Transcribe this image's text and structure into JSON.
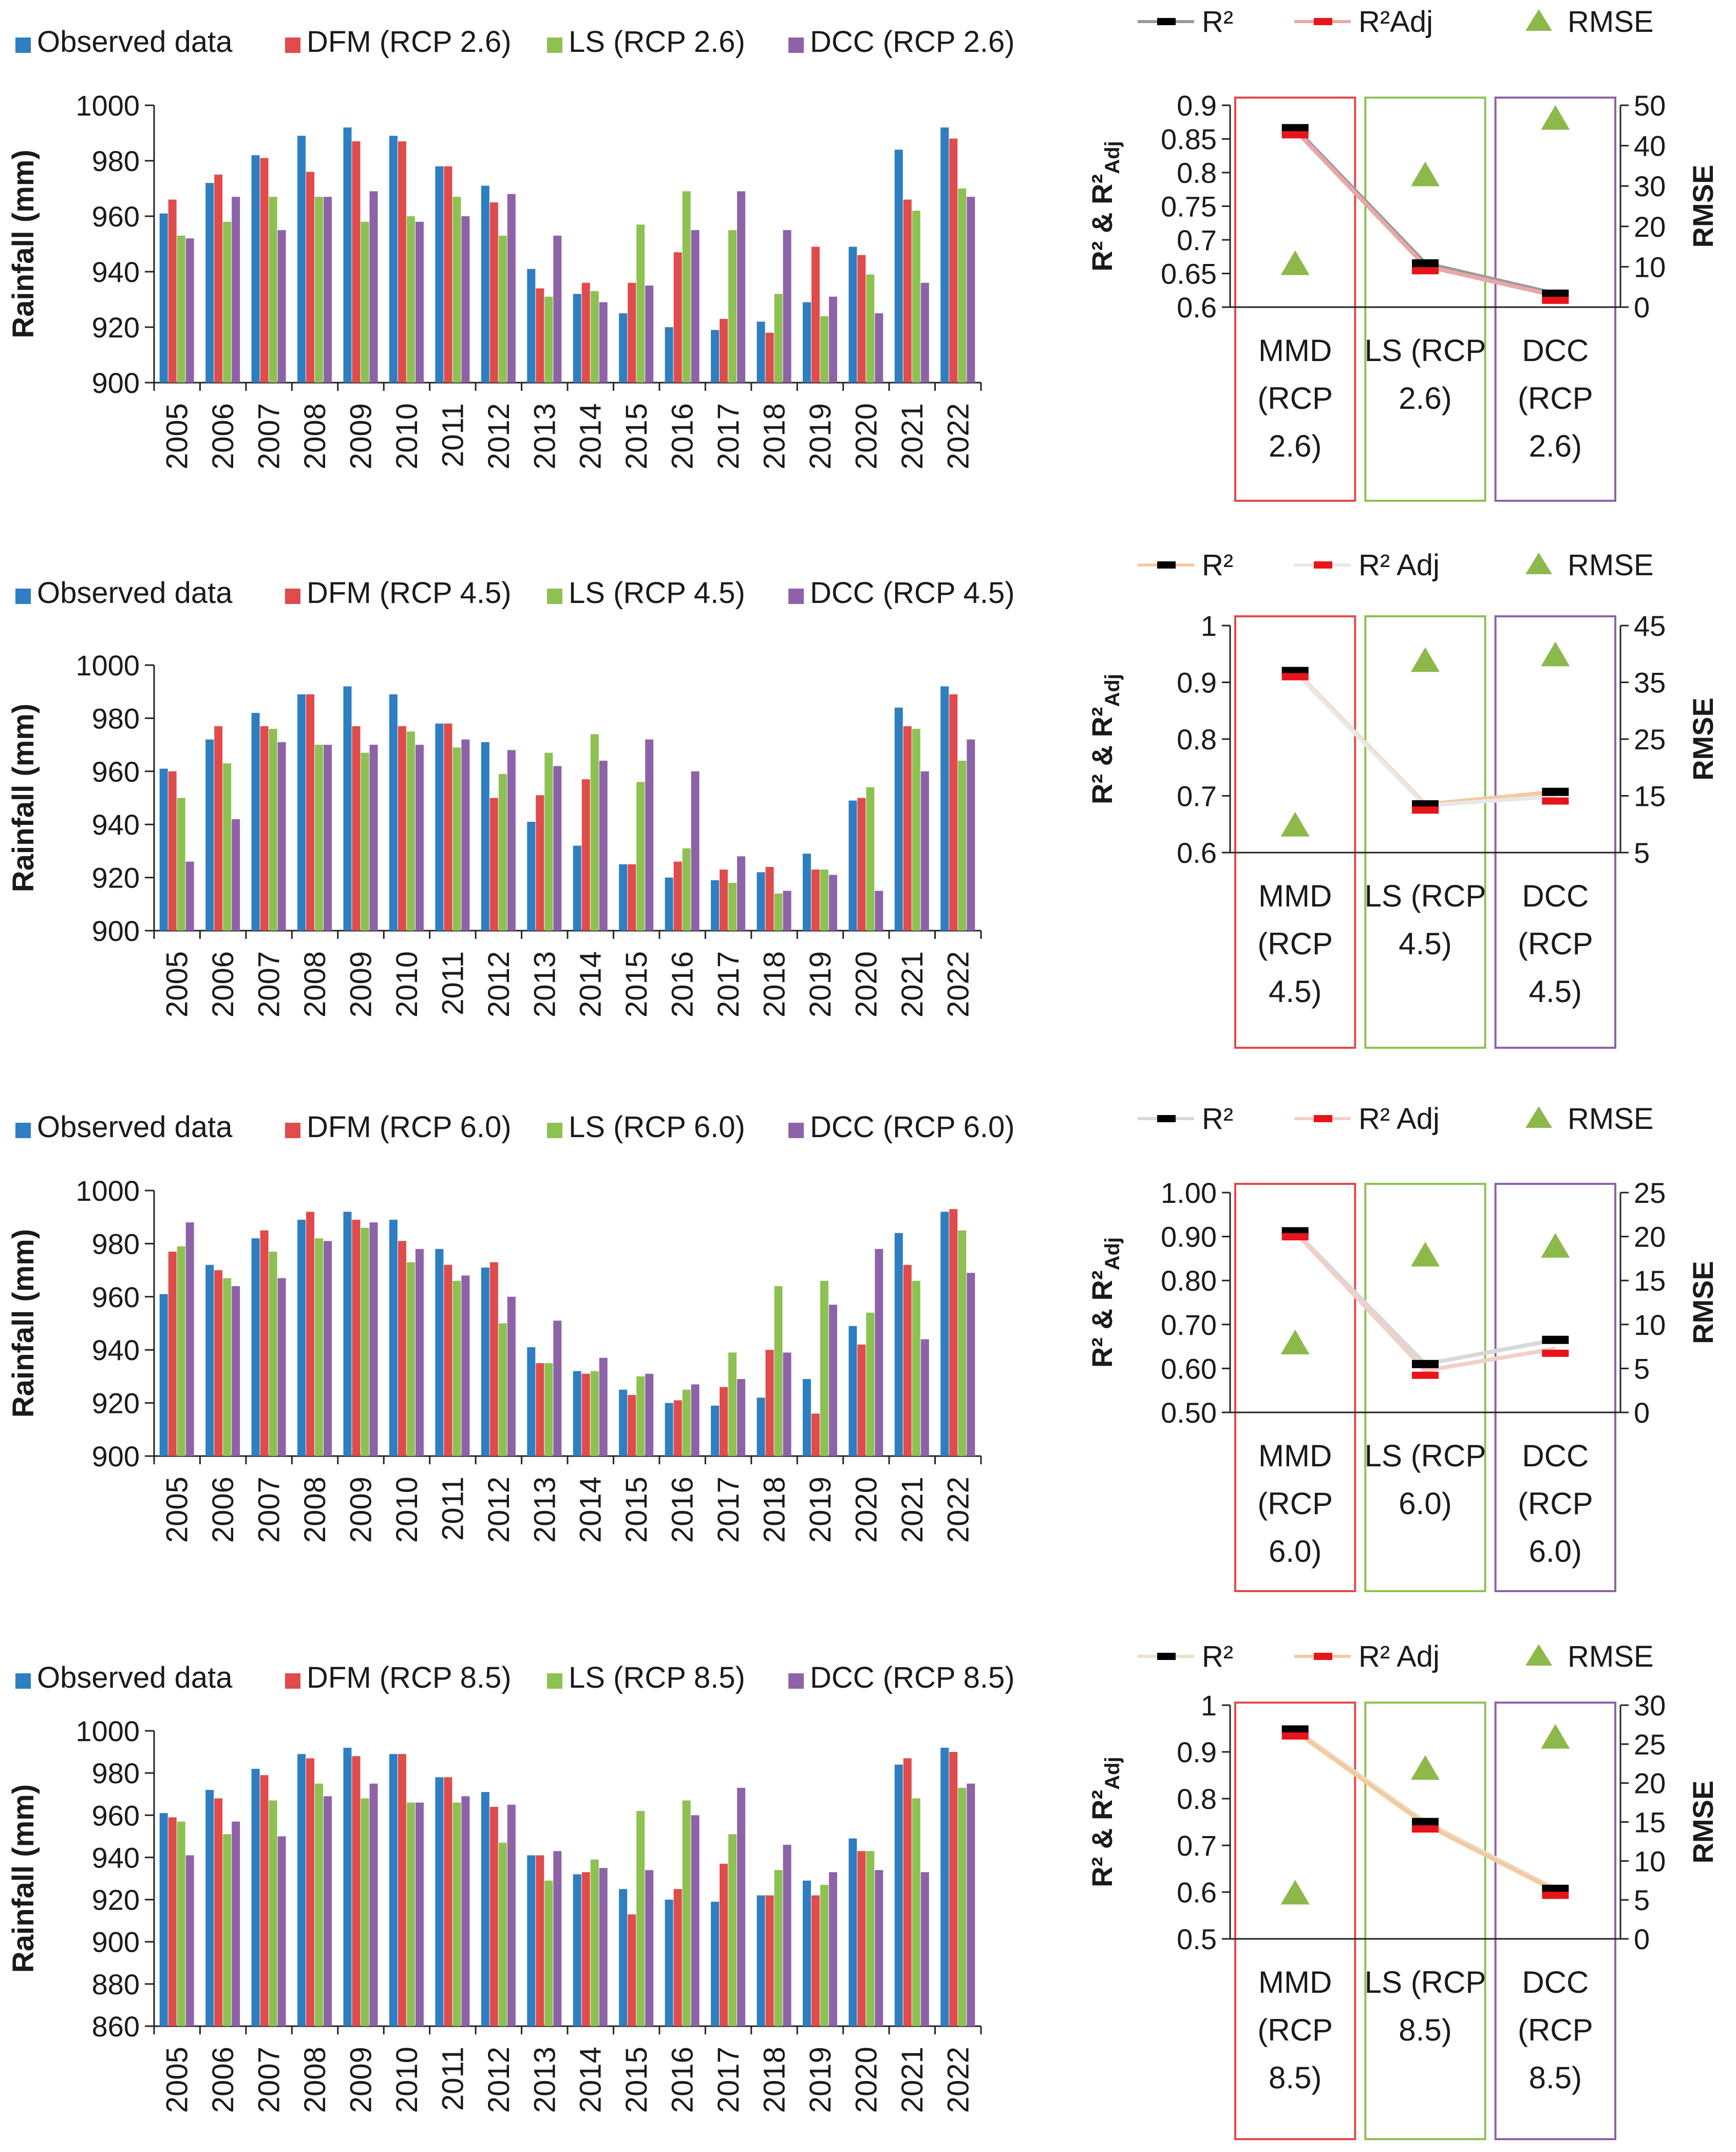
{
  "chart_data": [
    {
      "type": "bar",
      "panel": "RCP 2.6 rainfall",
      "categories": [
        "2005",
        "2006",
        "2007",
        "2008",
        "2009",
        "2010",
        "2011",
        "2012",
        "2013",
        "2014",
        "2015",
        "2016",
        "2017",
        "2018",
        "2019",
        "2020",
        "2021",
        "2022"
      ],
      "ylabel": "Rainfall (mm)",
      "ylim": [
        900,
        1000
      ],
      "yticks": [
        900,
        920,
        940,
        960,
        980,
        1000
      ],
      "legend_position": "top",
      "series": [
        {
          "name": "Observed data",
          "color": "#2E7EC2",
          "values": [
            961,
            972,
            982,
            989,
            992,
            989,
            978,
            971,
            941,
            932,
            925,
            920,
            919,
            922,
            929,
            949,
            984,
            992
          ]
        },
        {
          "name": "DFM (RCP 2.6)",
          "color": "#E04B4B",
          "values": [
            966,
            975,
            981,
            976,
            987,
            987,
            978,
            965,
            934,
            936,
            936,
            947,
            923,
            918,
            949,
            946,
            966,
            988
          ]
        },
        {
          "name": "LS (RCP 2.6)",
          "color": "#8DC152",
          "values": [
            953,
            958,
            967,
            967,
            958,
            960,
            967,
            953,
            931,
            933,
            957,
            969,
            955,
            932,
            924,
            939,
            962,
            970
          ]
        },
        {
          "name": "DCC (RCP 2.6)",
          "color": "#8E62A8",
          "values": [
            952,
            967,
            955,
            967,
            969,
            958,
            960,
            968,
            953,
            929,
            935,
            955,
            969,
            955,
            931,
            925,
            936,
            967
          ]
        }
      ]
    },
    {
      "type": "line",
      "panel": "RCP 2.6 fit statistics",
      "categories": [
        "MMD (RCP 2.6)",
        "LS (RCP 2.6)",
        "DCC (RCP 2.6)"
      ],
      "ylabel": "R² & R²Adj",
      "y2label": "RMSE",
      "ylim": [
        0.6,
        0.9
      ],
      "yticks": [
        "0.6",
        "0.65",
        "0.7",
        "0.75",
        "0.8",
        "0.85",
        "0.9"
      ],
      "y2lim": [
        0,
        50
      ],
      "y2ticks": [
        0,
        10,
        20,
        30,
        40,
        50
      ],
      "box_colors": [
        "#E04B4B",
        "#8DC152",
        "#8E62A8"
      ],
      "legend": [
        "R²",
        "R²Adj",
        "RMSE"
      ],
      "r2": [
        0.866,
        0.665,
        0.62
      ],
      "r2adj": [
        0.863,
        0.661,
        0.617
      ],
      "rmse": [
        11,
        33,
        47
      ],
      "line_color_r2": "#9a9a9a",
      "line_color_r2adj": "#E8A8A8",
      "rmse_color": "#8DB84A"
    },
    {
      "type": "bar",
      "panel": "RCP 4.5 rainfall",
      "categories": [
        "2005",
        "2006",
        "2007",
        "2008",
        "2009",
        "2010",
        "2011",
        "2012",
        "2013",
        "2014",
        "2015",
        "2016",
        "2017",
        "2018",
        "2019",
        "2020",
        "2021",
        "2022"
      ],
      "ylabel": "Rainfall (mm)",
      "ylim": [
        900,
        1000
      ],
      "yticks": [
        900,
        920,
        940,
        960,
        980,
        1000
      ],
      "legend_position": "top",
      "series": [
        {
          "name": "Observed data",
          "color": "#2E7EC2",
          "values": [
            961,
            972,
            982,
            989,
            992,
            989,
            978,
            971,
            941,
            932,
            925,
            920,
            919,
            922,
            929,
            949,
            984,
            992
          ]
        },
        {
          "name": "DFM (RCP 4.5)",
          "color": "#E04B4B",
          "values": [
            960,
            977,
            977,
            989,
            977,
            977,
            978,
            950,
            951,
            957,
            925,
            926,
            923,
            924,
            923,
            950,
            977,
            989
          ]
        },
        {
          "name": "LS (RCP 4.5)",
          "color": "#8DC152",
          "values": [
            950,
            963,
            976,
            970,
            967,
            975,
            969,
            959,
            967,
            974,
            956,
            931,
            918,
            914,
            923,
            954,
            976,
            964
          ]
        },
        {
          "name": "DCC (RCP 4.5)",
          "color": "#8E62A8",
          "values": [
            926,
            942,
            971,
            970,
            970,
            970,
            972,
            968,
            962,
            964,
            972,
            960,
            928,
            915,
            921,
            915,
            960,
            972
          ]
        }
      ]
    },
    {
      "type": "line",
      "panel": "RCP 4.5 fit statistics",
      "categories": [
        "MMD (RCP 4.5)",
        "LS (RCP 4.5)",
        "DCC (RCP 4.5)"
      ],
      "ylabel": "R² & R²Adj",
      "y2label": "RMSE",
      "ylim": [
        0.6,
        1.0
      ],
      "yticks": [
        "0.6",
        "0.7",
        "0.8",
        "0.9",
        "1"
      ],
      "y2lim": [
        5,
        45
      ],
      "y2ticks": [
        5,
        15,
        25,
        35,
        45
      ],
      "box_colors": [
        "#E04B4B",
        "#8DC152",
        "#8E62A8"
      ],
      "legend": [
        "R²",
        "R² Adj",
        "RMSE"
      ],
      "r2": [
        0.92,
        0.685,
        0.707
      ],
      "r2adj": [
        0.918,
        0.683,
        0.699
      ],
      "rmse": [
        10,
        39,
        40
      ],
      "line_color_r2": "#F5C9A0",
      "line_color_r2adj": "#E8E8E8",
      "rmse_color": "#8DB84A"
    },
    {
      "type": "bar",
      "panel": "RCP 6.0 rainfall",
      "categories": [
        "2005",
        "2006",
        "2007",
        "2008",
        "2009",
        "2010",
        "2011",
        "2012",
        "2013",
        "2014",
        "2015",
        "2016",
        "2017",
        "2018",
        "2019",
        "2020",
        "2021",
        "2022"
      ],
      "ylabel": "Rainfall (mm)",
      "ylim": [
        900,
        1000
      ],
      "yticks": [
        900,
        920,
        940,
        960,
        980,
        1000
      ],
      "legend_position": "top",
      "series": [
        {
          "name": "Observed data",
          "color": "#2E7EC2",
          "values": [
            961,
            972,
            982,
            989,
            992,
            989,
            978,
            971,
            941,
            932,
            925,
            920,
            919,
            922,
            929,
            949,
            984,
            992
          ]
        },
        {
          "name": "DFM (RCP 6.0)",
          "color": "#E04B4B",
          "values": [
            977,
            970,
            985,
            992,
            989,
            981,
            972,
            973,
            935,
            931,
            923,
            921,
            926,
            940,
            916,
            942,
            972,
            993
          ]
        },
        {
          "name": "LS (RCP 6.0)",
          "color": "#8DC152",
          "values": [
            979,
            967,
            977,
            982,
            986,
            973,
            966,
            950,
            935,
            932,
            930,
            925,
            939,
            964,
            966,
            954,
            966,
            985
          ]
        },
        {
          "name": "DCC (RCP 6.0)",
          "color": "#8E62A8",
          "values": [
            988,
            964,
            967,
            981,
            988,
            978,
            968,
            960,
            951,
            937,
            931,
            927,
            929,
            939,
            957,
            978,
            944,
            969
          ]
        }
      ]
    },
    {
      "type": "line",
      "panel": "RCP 6.0 fit statistics",
      "categories": [
        "MMD (RCP 6.0)",
        "LS (RCP 6.0)",
        "DCC (RCP 6.0)"
      ],
      "ylabel": "R² & R²Adj",
      "y2label": "RMSE",
      "ylim": [
        0.5,
        1.0
      ],
      "yticks": [
        "0.50",
        "0.60",
        "0.70",
        "0.80",
        "0.90",
        "1.00"
      ],
      "y2lim": [
        0,
        25
      ],
      "y2ticks": [
        0,
        5,
        10,
        15,
        20,
        25
      ],
      "box_colors": [
        "#E04B4B",
        "#8DC152",
        "#8E62A8"
      ],
      "legend": [
        "R²",
        "R² Adj",
        "RMSE"
      ],
      "r2": [
        0.912,
        0.61,
        0.665
      ],
      "r2adj": [
        0.91,
        0.595,
        0.645
      ],
      "rmse": [
        8,
        18,
        19
      ],
      "line_color_r2": "#D8D8D8",
      "line_color_r2adj": "#F2D0C8",
      "rmse_color": "#8DB84A"
    },
    {
      "type": "bar",
      "panel": "RCP 8.5 rainfall",
      "categories": [
        "2005",
        "2006",
        "2007",
        "2008",
        "2009",
        "2010",
        "2011",
        "2012",
        "2013",
        "2014",
        "2015",
        "2016",
        "2017",
        "2018",
        "2019",
        "2020",
        "2021",
        "2022"
      ],
      "ylabel": "Rainfall (mm)",
      "ylim": [
        860,
        1000
      ],
      "yticks": [
        860,
        880,
        900,
        920,
        940,
        960,
        980,
        1000
      ],
      "legend_position": "top",
      "series": [
        {
          "name": "Observed data",
          "color": "#2E7EC2",
          "values": [
            961,
            972,
            982,
            989,
            992,
            989,
            978,
            971,
            941,
            932,
            925,
            920,
            919,
            922,
            929,
            949,
            984,
            992
          ]
        },
        {
          "name": "DFM (RCP 8.5)",
          "color": "#E04B4B",
          "values": [
            959,
            968,
            979,
            987,
            988,
            989,
            978,
            964,
            941,
            933,
            913,
            925,
            937,
            922,
            922,
            943,
            987,
            990
          ]
        },
        {
          "name": "LS (RCP 8.5)",
          "color": "#8DC152",
          "values": [
            957,
            951,
            967,
            975,
            968,
            966,
            966,
            947,
            929,
            939,
            962,
            967,
            951,
            934,
            927,
            943,
            968,
            973
          ]
        },
        {
          "name": "DCC (RCP 8.5)",
          "color": "#8E62A8",
          "values": [
            941,
            957,
            950,
            969,
            975,
            966,
            969,
            965,
            943,
            935,
            934,
            960,
            973,
            946,
            933,
            934,
            933,
            975
          ]
        }
      ]
    },
    {
      "type": "line",
      "panel": "RCP 8.5 fit statistics",
      "categories": [
        "MMD (RCP 8.5)",
        "LS (RCP 8.5)",
        "DCC (RCP 8.5)"
      ],
      "ylabel": "R² & R²Adj",
      "y2label": "RMSE",
      "ylim": [
        0.5,
        1.0
      ],
      "yticks": [
        "0.5",
        "0.6",
        "0.7",
        "0.8",
        "0.9",
        "1"
      ],
      "y2lim": [
        0,
        30
      ],
      "y2ticks": [
        0,
        5,
        10,
        15,
        20,
        25,
        30
      ],
      "box_colors": [
        "#E04B4B",
        "#8DC152",
        "#8E62A8"
      ],
      "legend": [
        "R²",
        "R² Adj",
        "RMSE"
      ],
      "r2": [
        0.948,
        0.75,
        0.607
      ],
      "r2adj": [
        0.944,
        0.745,
        0.603
      ],
      "rmse": [
        6,
        22,
        26
      ],
      "line_color_r2": "#E8E0CC",
      "line_color_r2adj": "#F5C9A0",
      "rmse_color": "#8DB84A"
    }
  ]
}
